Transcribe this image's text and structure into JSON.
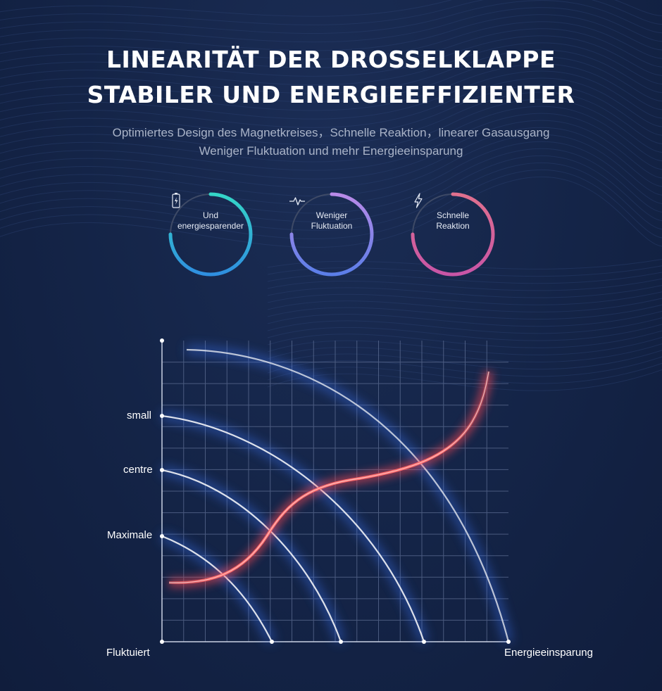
{
  "title": {
    "line1": "LINEARITÄT DER DROSSELKLAPPE",
    "line2": "STABILER UND ENERGIEEFFIZIENTER"
  },
  "subtitle": {
    "line1": "Optimiertes Design des Magnetkreises，Schnelle Reaktion，linearer Gasausgang",
    "line2": "Weniger Fluktuation und mehr Energieeinsparung"
  },
  "badges": [
    {
      "line1": "Und",
      "line2": "energiesparender",
      "icon": "battery-charging-icon",
      "colors": [
        "#34d6c7",
        "#2f8fe0"
      ],
      "fraction": 0.75
    },
    {
      "line1": "Weniger",
      "line2": "Fluktuation",
      "icon": "pulse-icon",
      "colors": [
        "#b98ae8",
        "#5b7ee8"
      ],
      "fraction": 0.75
    },
    {
      "line1": "Schnelle",
      "line2": "Reaktion",
      "icon": "lightning-icon",
      "colors": [
        "#e0708e",
        "#c855a6"
      ],
      "fraction": 0.75
    }
  ],
  "chart": {
    "y_labels": [
      "small",
      "centre",
      "Maximale"
    ],
    "x_start_label": "Fluktuiert",
    "x_end_label": "Energieeinsparung",
    "curve_color": "#ff5a5a",
    "arc_color": "#ffffff"
  }
}
